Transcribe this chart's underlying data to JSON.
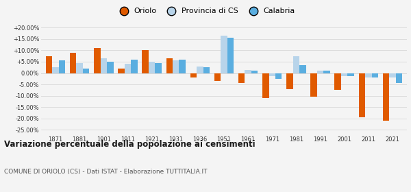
{
  "years": [
    1871,
    1881,
    1901,
    1911,
    1921,
    1931,
    1936,
    1951,
    1961,
    1971,
    1981,
    1991,
    2001,
    2011,
    2021
  ],
  "oriolo": [
    7.5,
    9.0,
    11.0,
    2.0,
    10.0,
    6.5,
    -2.0,
    -3.5,
    -4.5,
    -11.0,
    -7.0,
    -10.5,
    -7.5,
    -19.5,
    -21.0
  ],
  "provincia_cs": [
    2.5,
    4.5,
    6.5,
    4.0,
    5.0,
    5.5,
    3.0,
    16.5,
    1.5,
    -1.5,
    7.5,
    1.0,
    -1.5,
    -2.0,
    -2.0
  ],
  "calabria": [
    5.5,
    2.0,
    5.0,
    6.0,
    4.5,
    6.0,
    2.5,
    15.5,
    1.0,
    -2.5,
    3.5,
    1.0,
    -1.5,
    -2.0,
    -4.5
  ],
  "oriolo_color": "#e05a00",
  "provincia_cs_color": "#b8d4ea",
  "calabria_color": "#5aaee0",
  "title": "Variazione percentuale della popolazione ai censimenti",
  "subtitle": "COMUNE DI ORIOLO (CS) - Dati ISTAT - Elaborazione TUTTITALIA.IT",
  "ylim": [
    -27,
    22
  ],
  "yticks": [
    -25,
    -20,
    -15,
    -10,
    -5,
    0,
    5,
    10,
    15,
    20
  ],
  "ytick_labels": [
    "-25.00%",
    "-20.00%",
    "-15.00%",
    "-10.00%",
    "-5.00%",
    "0.00%",
    "+5.00%",
    "+10.00%",
    "+15.00%",
    "+20.00%"
  ],
  "bg_color": "#f4f4f4",
  "grid_color": "#d8d8d8",
  "bar_width": 0.27
}
